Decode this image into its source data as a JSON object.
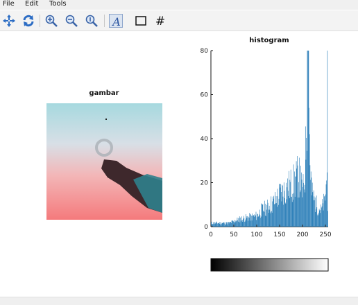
{
  "menu": {
    "items": [
      "File",
      "Edit",
      "Tools"
    ]
  },
  "toolbar": {
    "buttons": [
      "pan-icon",
      "rotate-icon",
      "zoom-in-icon",
      "zoom-out-icon",
      "zoom-reset-icon",
      "text-icon",
      "rectangle-icon",
      "grid-icon"
    ],
    "text_glyph": "A",
    "grid_glyph": "#"
  },
  "image_panel": {
    "title": "gambar"
  },
  "histogram": {
    "title": "histogram",
    "chart_data": {
      "type": "bar",
      "title": "histogram",
      "xlabel": "",
      "ylabel": "",
      "xlim": [
        0,
        256
      ],
      "ylim": [
        0,
        80
      ],
      "xticks": [
        "0",
        "50",
        "100",
        "150",
        "200",
        "250"
      ],
      "yticks": [
        "0",
        "20",
        "40",
        "60",
        "80"
      ],
      "bar_color": "#1f77b4",
      "bins": 256,
      "envelope": [
        {
          "x": 0,
          "y": 2
        },
        {
          "x": 40,
          "y": 2
        },
        {
          "x": 60,
          "y": 4
        },
        {
          "x": 80,
          "y": 5
        },
        {
          "x": 100,
          "y": 6
        },
        {
          "x": 110,
          "y": 9
        },
        {
          "x": 125,
          "y": 11
        },
        {
          "x": 140,
          "y": 14
        },
        {
          "x": 150,
          "y": 18
        },
        {
          "x": 160,
          "y": 20
        },
        {
          "x": 170,
          "y": 22
        },
        {
          "x": 180,
          "y": 24
        },
        {
          "x": 190,
          "y": 28
        },
        {
          "x": 195,
          "y": 26
        },
        {
          "x": 200,
          "y": 18
        },
        {
          "x": 205,
          "y": 30
        },
        {
          "x": 210,
          "y": 78
        },
        {
          "x": 213,
          "y": 80
        },
        {
          "x": 216,
          "y": 36
        },
        {
          "x": 220,
          "y": 18
        },
        {
          "x": 230,
          "y": 12
        },
        {
          "x": 240,
          "y": 9
        },
        {
          "x": 248,
          "y": 14
        },
        {
          "x": 252,
          "y": 24
        },
        {
          "x": 254,
          "y": 80
        },
        {
          "x": 255,
          "y": 6
        }
      ]
    }
  },
  "colorbar": {
    "from": "#000000",
    "to": "#ffffff"
  }
}
